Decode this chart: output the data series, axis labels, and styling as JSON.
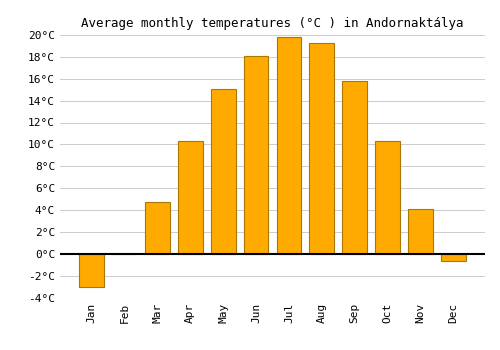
{
  "title": "Average monthly temperatures (°C ) in Andornaktálya",
  "months": [
    "Jan",
    "Feb",
    "Mar",
    "Apr",
    "May",
    "Jun",
    "Jul",
    "Aug",
    "Sep",
    "Oct",
    "Nov",
    "Dec"
  ],
  "values": [
    -3.0,
    0.0,
    4.7,
    10.3,
    15.1,
    18.1,
    19.8,
    19.3,
    15.8,
    10.3,
    4.1,
    -0.7
  ],
  "bar_color": "#FFAA00",
  "bar_edge_color": "#AA7700",
  "ylim": [
    -4,
    20
  ],
  "yticks": [
    -4,
    -2,
    0,
    2,
    4,
    6,
    8,
    10,
    12,
    14,
    16,
    18,
    20
  ],
  "background_color": "#FFFFFF",
  "grid_color": "#CCCCCC",
  "title_fontsize": 9,
  "tick_fontsize": 8,
  "zero_line_color": "#000000",
  "font_family": "monospace"
}
